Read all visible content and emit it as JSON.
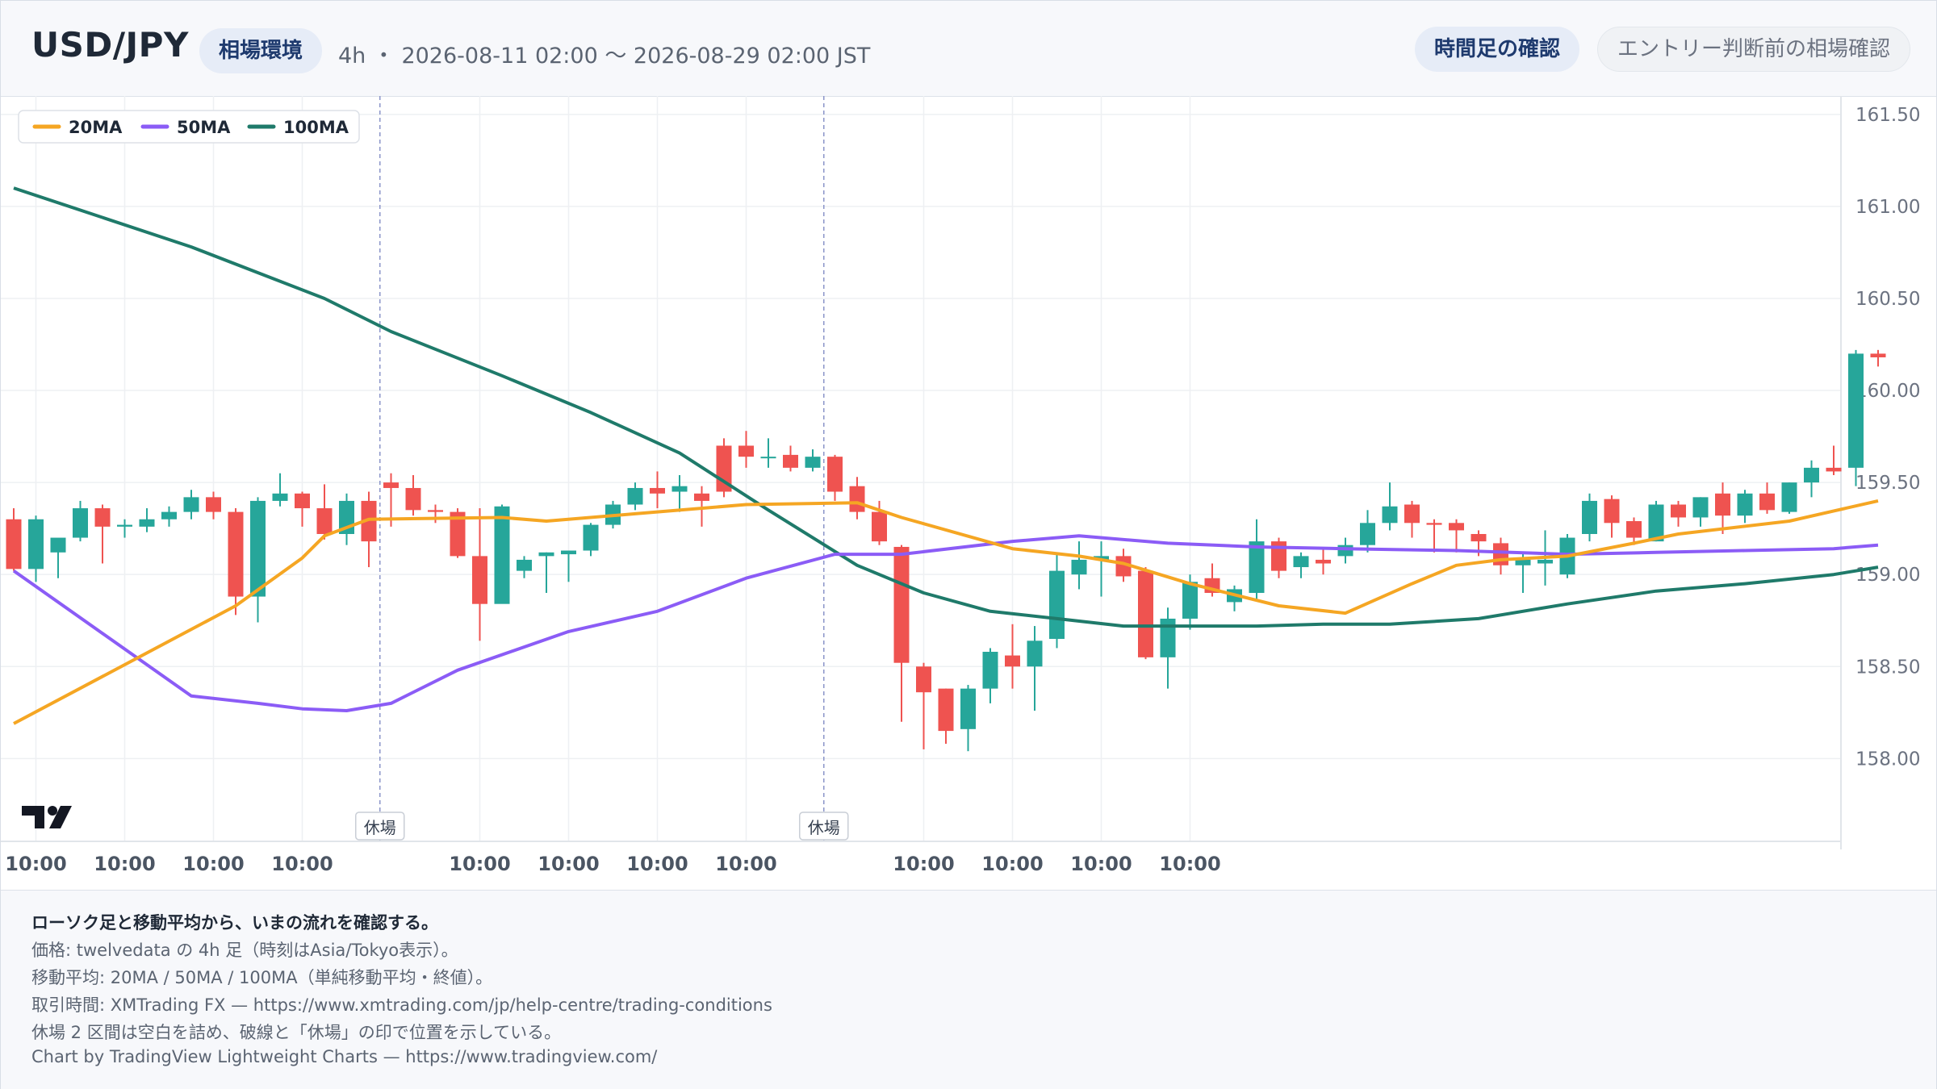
{
  "header": {
    "symbol": "USD/JPY",
    "env_label": "相場環境",
    "range_text": "4h ・ 2026-08-11 02:00 〜 2026-08-29 02:00 JST",
    "tabs": [
      {
        "label": "時間足の確認",
        "active": true
      },
      {
        "label": "エントリー判断前の相場確認",
        "active": false
      }
    ]
  },
  "footer": {
    "lead": "ローソク足と移動平均から、いまの流れを確認する。",
    "lines": [
      "価格: twelvedata の 4h 足（時刻はAsia/Tokyo表示）。",
      "移動平均: 20MA / 50MA / 100MA（単純移動平均・終値）。",
      "取引時間: XMTrading FX — https://www.xmtrading.com/jp/help-centre/trading-conditions",
      "休場 2 区間は空白を詰め、破線と「休場」の印で位置を示している。",
      "Chart by TradingView Lightweight Charts — https://www.tradingview.com/"
    ]
  },
  "colors": {
    "up": "#26a69a",
    "down": "#ef5350",
    "ma20": "#f5a623",
    "ma50": "#8b5cf6",
    "ma100": "#1f7a6a",
    "grid": "#eef0f3",
    "axis_text": "#6b7280"
  },
  "chart_data": {
    "type": "candlestick",
    "pair": "USD/JPY",
    "timeframe": "4h",
    "y_range": [
      157.55,
      161.6
    ],
    "y_ticks": [
      158.0,
      158.5,
      159.0,
      159.5,
      160.0,
      160.5,
      161.0,
      161.5
    ],
    "x_tick_label": "10:00",
    "x_tick_indices": [
      1,
      5,
      9,
      13,
      21,
      25,
      29,
      33,
      41,
      45,
      49,
      53
    ],
    "breaks": [
      {
        "after_index": 16,
        "label": "休場"
      },
      {
        "after_index": 36,
        "label": "休場"
      }
    ],
    "legend": [
      "20MA",
      "50MA",
      "100MA"
    ],
    "candles": [
      [
        159.3,
        159.36,
        159.02,
        159.03
      ],
      [
        159.03,
        159.32,
        158.96,
        159.3
      ],
      [
        159.12,
        159.18,
        158.98,
        159.2
      ],
      [
        159.2,
        159.4,
        159.18,
        159.36
      ],
      [
        159.36,
        159.38,
        159.06,
        159.26
      ],
      [
        159.26,
        159.3,
        159.2,
        159.27
      ],
      [
        159.26,
        159.36,
        159.23,
        159.3
      ],
      [
        159.3,
        159.37,
        159.26,
        159.34
      ],
      [
        159.34,
        159.46,
        159.3,
        159.42
      ],
      [
        159.42,
        159.45,
        159.3,
        159.34
      ],
      [
        159.34,
        159.36,
        158.78,
        158.88
      ],
      [
        158.88,
        159.42,
        158.74,
        159.4
      ],
      [
        159.4,
        159.55,
        159.37,
        159.44
      ],
      [
        159.44,
        159.45,
        159.26,
        159.36
      ],
      [
        159.36,
        159.49,
        159.19,
        159.22
      ],
      [
        159.22,
        159.44,
        159.16,
        159.4
      ],
      [
        159.4,
        159.45,
        159.04,
        159.18
      ],
      [
        159.5,
        159.55,
        159.26,
        159.47
      ],
      [
        159.47,
        159.54,
        159.32,
        159.35
      ],
      [
        159.35,
        159.38,
        159.28,
        159.34
      ],
      [
        159.34,
        159.36,
        159.09,
        159.1
      ],
      [
        159.1,
        159.36,
        158.64,
        158.84
      ],
      [
        158.84,
        159.38,
        158.86,
        159.37
      ],
      [
        159.02,
        159.1,
        158.98,
        159.08
      ],
      [
        159.1,
        159.12,
        158.9,
        159.12
      ],
      [
        159.11,
        159.13,
        158.96,
        159.13
      ],
      [
        159.13,
        159.28,
        159.1,
        159.27
      ],
      [
        159.27,
        159.4,
        159.25,
        159.38
      ],
      [
        159.38,
        159.5,
        159.35,
        159.47
      ],
      [
        159.47,
        159.56,
        159.36,
        159.44
      ],
      [
        159.45,
        159.54,
        159.34,
        159.48
      ],
      [
        159.44,
        159.48,
        159.26,
        159.4
      ],
      [
        159.7,
        159.74,
        159.42,
        159.45
      ],
      [
        159.7,
        159.78,
        159.58,
        159.64
      ],
      [
        159.64,
        159.74,
        159.58,
        159.64
      ],
      [
        159.65,
        159.7,
        159.56,
        159.58
      ],
      [
        159.58,
        159.68,
        159.56,
        159.64
      ],
      [
        159.64,
        159.65,
        159.4,
        159.45
      ],
      [
        159.48,
        159.53,
        159.3,
        159.34
      ],
      [
        159.34,
        159.4,
        159.16,
        159.18
      ],
      [
        159.15,
        159.16,
        158.2,
        158.52
      ],
      [
        158.5,
        158.52,
        158.05,
        158.36
      ],
      [
        158.38,
        158.38,
        158.08,
        158.15
      ],
      [
        158.16,
        158.4,
        158.04,
        158.38
      ],
      [
        158.38,
        158.6,
        158.3,
        158.58
      ],
      [
        158.56,
        158.73,
        158.38,
        158.5
      ],
      [
        158.5,
        158.72,
        158.26,
        158.64
      ],
      [
        158.65,
        159.12,
        158.6,
        159.02
      ],
      [
        159.0,
        159.18,
        158.92,
        159.08
      ],
      [
        159.08,
        159.18,
        158.88,
        159.1
      ],
      [
        159.1,
        159.14,
        158.96,
        158.99
      ],
      [
        159.02,
        159.04,
        158.54,
        158.55
      ],
      [
        158.55,
        158.82,
        158.38,
        158.76
      ],
      [
        158.76,
        159.0,
        158.7,
        158.96
      ],
      [
        158.98,
        159.06,
        158.88,
        158.9
      ],
      [
        158.85,
        158.94,
        158.8,
        158.92
      ],
      [
        158.9,
        159.3,
        158.86,
        159.18
      ],
      [
        159.18,
        159.2,
        158.98,
        159.02
      ],
      [
        159.04,
        159.12,
        158.98,
        159.1
      ],
      [
        159.08,
        159.14,
        159.0,
        159.06
      ],
      [
        159.1,
        159.2,
        159.06,
        159.16
      ],
      [
        159.16,
        159.35,
        159.12,
        159.28
      ],
      [
        159.28,
        159.5,
        159.24,
        159.37
      ],
      [
        159.38,
        159.4,
        159.2,
        159.28
      ],
      [
        159.28,
        159.3,
        159.12,
        159.27
      ],
      [
        159.28,
        159.3,
        159.12,
        159.24
      ],
      [
        159.22,
        159.24,
        159.1,
        159.18
      ],
      [
        159.17,
        159.2,
        159.0,
        159.05
      ],
      [
        159.05,
        159.12,
        158.9,
        159.08
      ],
      [
        159.06,
        159.24,
        158.94,
        159.08
      ],
      [
        159.0,
        159.22,
        158.98,
        159.2
      ],
      [
        159.22,
        159.44,
        159.18,
        159.4
      ],
      [
        159.41,
        159.43,
        159.2,
        159.28
      ],
      [
        159.29,
        159.31,
        159.16,
        159.2
      ],
      [
        159.18,
        159.4,
        159.18,
        159.38
      ],
      [
        159.38,
        159.4,
        159.26,
        159.31
      ],
      [
        159.31,
        159.42,
        159.26,
        159.42
      ],
      [
        159.44,
        159.5,
        159.22,
        159.32
      ],
      [
        159.32,
        159.46,
        159.28,
        159.44
      ],
      [
        159.44,
        159.5,
        159.33,
        159.35
      ],
      [
        159.34,
        159.5,
        159.33,
        159.5
      ],
      [
        159.5,
        159.62,
        159.42,
        159.58
      ],
      [
        159.58,
        159.7,
        159.54,
        159.56
      ],
      [
        159.58,
        160.22,
        159.48,
        160.2
      ],
      [
        160.2,
        160.22,
        160.13,
        160.18
      ]
    ],
    "ma20": [
      [
        0,
        158.19
      ],
      [
        10,
        158.83
      ],
      [
        13,
        159.09
      ],
      [
        14,
        159.21
      ],
      [
        16,
        159.3
      ],
      [
        22,
        159.31
      ],
      [
        24,
        159.29
      ],
      [
        28,
        159.33
      ],
      [
        33,
        159.38
      ],
      [
        38,
        159.39
      ],
      [
        40,
        159.31
      ],
      [
        45,
        159.14
      ],
      [
        48,
        159.1
      ],
      [
        50,
        159.06
      ],
      [
        53,
        158.95
      ],
      [
        57,
        158.83
      ],
      [
        60,
        158.79
      ],
      [
        63,
        158.95
      ],
      [
        65,
        159.05
      ],
      [
        67,
        159.08
      ],
      [
        70,
        159.1
      ],
      [
        73,
        159.17
      ],
      [
        75,
        159.22
      ],
      [
        80,
        159.29
      ],
      [
        84,
        159.4
      ]
    ],
    "ma50": [
      [
        0,
        159.02
      ],
      [
        8,
        158.34
      ],
      [
        11,
        158.3
      ],
      [
        13,
        158.27
      ],
      [
        15,
        158.26
      ],
      [
        17,
        158.3
      ],
      [
        20,
        158.48
      ],
      [
        25,
        158.69
      ],
      [
        29,
        158.8
      ],
      [
        33,
        158.98
      ],
      [
        37,
        159.11
      ],
      [
        40,
        159.11
      ],
      [
        45,
        159.18
      ],
      [
        48,
        159.21
      ],
      [
        52,
        159.17
      ],
      [
        56,
        159.15
      ],
      [
        60,
        159.14
      ],
      [
        65,
        159.13
      ],
      [
        70,
        159.11
      ],
      [
        74,
        159.12
      ],
      [
        78,
        159.13
      ],
      [
        82,
        159.14
      ],
      [
        84,
        159.16
      ]
    ],
    "ma100": [
      [
        0,
        161.1
      ],
      [
        8,
        160.78
      ],
      [
        14,
        160.5
      ],
      [
        17,
        160.32
      ],
      [
        22,
        160.08
      ],
      [
        26,
        159.88
      ],
      [
        30,
        159.66
      ],
      [
        34,
        159.35
      ],
      [
        38,
        159.05
      ],
      [
        41,
        158.9
      ],
      [
        44,
        158.8
      ],
      [
        47,
        158.76
      ],
      [
        50,
        158.72
      ],
      [
        53,
        158.72
      ],
      [
        56,
        158.72
      ],
      [
        59,
        158.73
      ],
      [
        62,
        158.73
      ],
      [
        66,
        158.76
      ],
      [
        70,
        158.84
      ],
      [
        74,
        158.91
      ],
      [
        78,
        158.95
      ],
      [
        82,
        159.0
      ],
      [
        84,
        159.04
      ]
    ]
  }
}
